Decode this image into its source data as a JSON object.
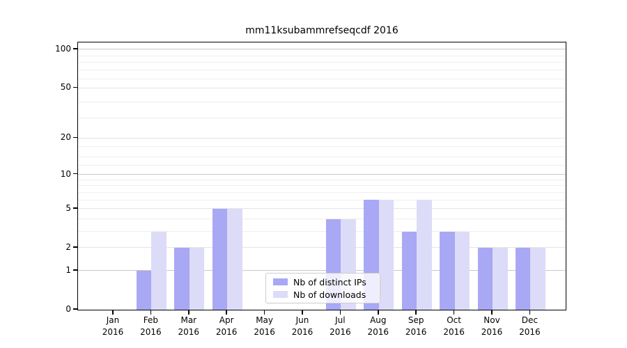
{
  "chart_data": {
    "type": "bar",
    "title": "mm11ksubammrefseqcdf 2016",
    "categories": [
      {
        "month": "Jan",
        "year": "2016"
      },
      {
        "month": "Feb",
        "year": "2016"
      },
      {
        "month": "Mar",
        "year": "2016"
      },
      {
        "month": "Apr",
        "year": "2016"
      },
      {
        "month": "May",
        "year": "2016"
      },
      {
        "month": "Jun",
        "year": "2016"
      },
      {
        "month": "Jul",
        "year": "2016"
      },
      {
        "month": "Aug",
        "year": "2016"
      },
      {
        "month": "Sep",
        "year": "2016"
      },
      {
        "month": "Oct",
        "year": "2016"
      },
      {
        "month": "Nov",
        "year": "2016"
      },
      {
        "month": "Dec",
        "year": "2016"
      }
    ],
    "series": [
      {
        "name": "Nb of distinct IPs",
        "color": "#a8a8f5",
        "values": [
          0,
          1,
          2,
          5,
          0,
          0,
          4,
          6,
          3,
          3,
          2,
          2
        ]
      },
      {
        "name": "Nb of downloads",
        "color": "#dcdcf8",
        "values": [
          0,
          3,
          2,
          5,
          0,
          0,
          4,
          6,
          6,
          3,
          2,
          2
        ]
      }
    ],
    "xlabel": "",
    "ylabel": "",
    "yscale": "log1p",
    "ylim": [
      0,
      113
    ],
    "yticks": [
      0,
      1,
      2,
      5,
      10,
      20,
      50,
      100
    ],
    "grid": {
      "strong_ticks": [
        1,
        10,
        100
      ],
      "medium_ticks": [
        2,
        5,
        20,
        50
      ],
      "minor_ticks": [
        3,
        4,
        6,
        7,
        8,
        9,
        12,
        14,
        17,
        29,
        39,
        59,
        69,
        79,
        89
      ],
      "strong_color": "#c8c8c8",
      "medium_color": "#e4e4e4",
      "minor_color": "#efefef"
    },
    "legend_position": "inside-bottom-center"
  }
}
